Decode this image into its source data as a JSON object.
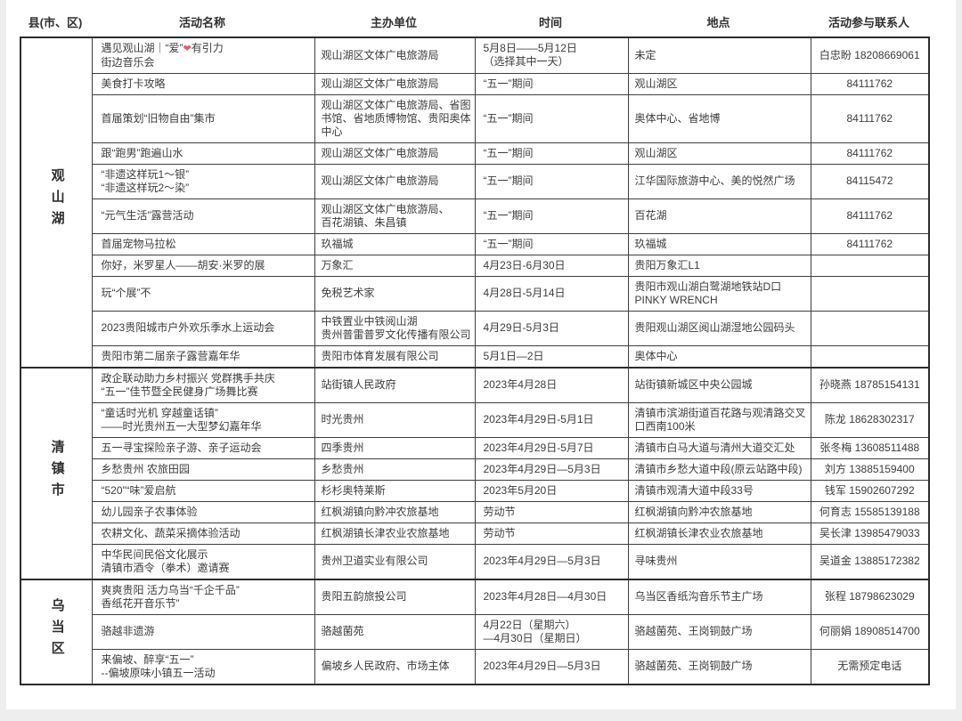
{
  "table": {
    "heart_color": "#e8596e",
    "headers": [
      "县(市、区)",
      "活动名称",
      "主办单位",
      "时间",
      "地点",
      "活动参与联系人"
    ],
    "groups": [
      {
        "county": "观山湖",
        "rows": [
          {
            "name": "遇见观山湖｜“爱”❤有引力\n街边音乐会",
            "org": "观山湖区文体广电旅游局",
            "time": "5月8日——5月12日\n（选择其中一天）",
            "loc": "未定",
            "contact": "白忠盼 18208669061"
          },
          {
            "name": "美食打卡攻略",
            "org": "观山湖区文体广电旅游局",
            "time": "“五一”期间",
            "loc": "观山湖区",
            "contact": "84111762"
          },
          {
            "name": "首届策划“旧物自由”集市",
            "org": "观山湖区文体广电旅游局、省图书馆、省地质博物馆、贵阳奥体中心",
            "time": "“五一”期间",
            "loc": "奥体中心、省地博",
            "contact": "84111762"
          },
          {
            "name": "跟“跑男”跑遍山水",
            "org": "观山湖区文体广电旅游局",
            "time": "“五一”期间",
            "loc": "观山湖区",
            "contact": "84111762"
          },
          {
            "name": "“非遗这样玩1～银”\n“非遗这样玩2～染”",
            "org": "观山湖区文体广电旅游局",
            "time": "“五一”期间",
            "loc": "江华国际旅游中心、美的悦然广场",
            "contact": "84115472"
          },
          {
            "name": "“元气生活”露营活动",
            "org": "观山湖区文体广电旅游局、\n百花湖镇、朱昌镇",
            "time": "“五一”期间",
            "loc": "百花湖",
            "contact": "84111762"
          },
          {
            "name": "首届宠物马拉松",
            "org": "玖福城",
            "time": "“五一”期间",
            "loc": "玖福城",
            "contact": "84111762"
          },
          {
            "name": "你好，米罗星人——胡安·米罗的展",
            "org": "万象汇",
            "time": "4月23日-6月30日",
            "loc": "贵阳万象汇L1",
            "contact": ""
          },
          {
            "name": "玩“个展”不",
            "org": "免税艺术家",
            "time": "4月28日-5月14日",
            "loc": "贵阳市观山湖白鹭湖地铁站D口\nPINKY WRENCH",
            "contact": ""
          },
          {
            "name": "2023贵阳城市户外欢乐季水上运动会",
            "org": "中铁置业中铁阅山湖\n贵州普雷普罗文化传播有限公司",
            "time": "4月29日-5月3日",
            "loc": "贵阳观山湖区阅山湖湿地公园码头",
            "contact": ""
          },
          {
            "name": "贵阳市第二届亲子露营嘉年华",
            "org": "贵阳市体育发展有限公司",
            "time": "5月1日—2日",
            "loc": "奥体中心",
            "contact": ""
          }
        ]
      },
      {
        "county": "清镇市",
        "rows": [
          {
            "name": "政企联动助力乡村振兴 党群携手共庆\n“五一”佳节暨全民健身广场舞比赛",
            "org": "站街镇人民政府",
            "time": "2023年4月28日",
            "loc": "站街镇新城区中央公园城",
            "contact": "孙晓燕 18785154131"
          },
          {
            "name": "“童话时光机 穿越童话镇”\n——时光贵州五一大型梦幻嘉年华",
            "org": "时光贵州",
            "time": "2023年4月29日-5月1日",
            "loc": "清镇市滨湖街道百花路与观清路交叉口西南100米",
            "contact": "陈龙 18628302317"
          },
          {
            "name": "五一寻宝探险亲子游、亲子运动会",
            "org": "四季贵州",
            "time": "2023年4月29日-5月7日",
            "loc": "清镇市白马大道与清州大道交汇处",
            "contact": "张冬梅 13608511488"
          },
          {
            "name": "乡愁贵州 农旅田园",
            "org": "乡愁贵州",
            "time": "2023年4月29日—5月3日",
            "loc": "清镇市乡愁大道中段(原云站路中段)",
            "contact": "刘方 13885159400"
          },
          {
            "name": "“520”“味”爱启航",
            "org": "杉杉奥特莱斯",
            "time": "2023年5月20日",
            "loc": "清镇市观清大道中段33号",
            "contact": "钱军 15902607292"
          },
          {
            "name": "幼儿园亲子农事体验",
            "org": "红枫湖镇向黔冲农旅基地",
            "time": "劳动节",
            "loc": "红枫湖镇向黔冲农旅基地",
            "contact": "何育志 15585139188"
          },
          {
            "name": "农耕文化、蔬菜采摘体验活动",
            "org": "红枫湖镇长津农业农旅基地",
            "time": "劳动节",
            "loc": "红枫湖镇长津农业农旅基地",
            "contact": "吴长津 13985479033"
          },
          {
            "name": "中华民间民俗文化展示\n清镇市酒令（拳术）邀请赛",
            "org": "贵州卫道实业有限公司",
            "time": "2023年4月29日—5月3日",
            "loc": "寻味贵州",
            "contact": "吴道金 13885172382"
          }
        ]
      },
      {
        "county": "乌当区",
        "rows": [
          {
            "name": "爽爽贵阳 活力乌当“千企千品”\n香纸花开音乐节”",
            "org": "贵阳五韵旅投公司",
            "time": "2023年4月28日—4月30日",
            "loc": "乌当区香纸沟音乐节主广场",
            "contact": "张程 18798623029"
          },
          {
            "name": "骆越非遗游",
            "org": "骆越菌苑",
            "time": "4月22日（星期六）\n—4月30日（星期日）",
            "loc": "骆越菌苑、王岗铜鼓广场",
            "contact": "何丽娟 18908514700"
          },
          {
            "name": "来偏坡、醉享“五一”\n--偏坡原味小镇五一活动",
            "org": "偏坡乡人民政府、市场主体",
            "time": "2023年4月29日—5月3日",
            "loc": "骆越菌苑、王岗铜鼓广场",
            "contact": "无需预定电话"
          }
        ]
      }
    ]
  }
}
